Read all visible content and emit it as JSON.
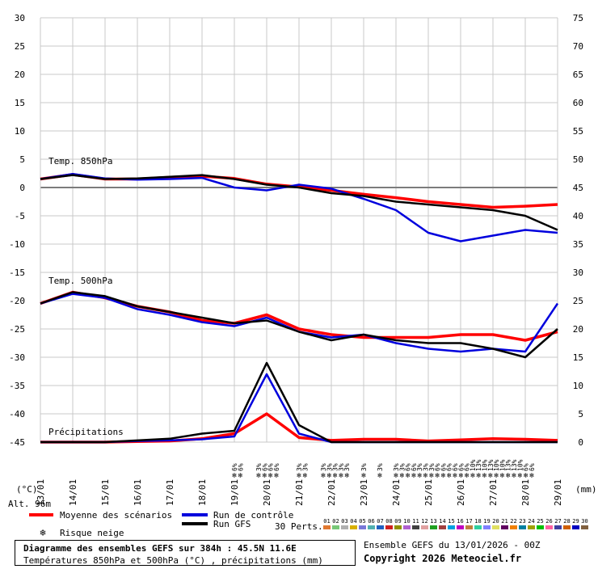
{
  "chart_data": {
    "type": "line",
    "title": "Diagramme des ensembles GEFS sur 384h : 45.5N 11.6E",
    "subtitle": "Températures 850hPa et 500hPa (°C) , précipitations (mm)",
    "left_axis_unit": "(°C)",
    "right_axis_unit": "(mm)",
    "left_ticks": [
      30,
      25,
      20,
      15,
      10,
      5,
      0,
      -5,
      -10,
      -15,
      -20,
      -25,
      -30,
      -35,
      -40,
      -45
    ],
    "right_ticks": [
      75,
      70,
      65,
      60,
      55,
      50,
      45,
      40,
      35,
      30,
      25,
      20,
      15,
      10,
      5,
      0
    ],
    "ylim": [
      -45,
      30
    ],
    "x_dates": [
      "13/01",
      "14/01",
      "15/01",
      "16/01",
      "17/01",
      "18/01",
      "19/01",
      "20/01",
      "21/01",
      "22/01",
      "23/01",
      "24/01",
      "25/01",
      "26/01",
      "27/01",
      "28/01",
      "29/01"
    ],
    "section_labels": {
      "t850": "Temp. 850hPa",
      "t500": "Temp. 500hPa",
      "precip": "Précipitations"
    },
    "altitude": "Alt. 96m",
    "x_hours": [
      0,
      24,
      48,
      72,
      96,
      120,
      144,
      168,
      192,
      216,
      240,
      264,
      288,
      312,
      336,
      360,
      384
    ],
    "series": [
      {
        "name": "Moyenne des scénarios",
        "group": "t850",
        "color": "#ff0000",
        "values": [
          1.5,
          2.3,
          1.5,
          1.5,
          1.8,
          2.0,
          1.6,
          0.6,
          0.1,
          -0.5,
          -1.2,
          -1.8,
          -2.5,
          -3.0,
          -3.5,
          -3.3,
          -3.0
        ]
      },
      {
        "name": "Run de contrôle",
        "group": "t850",
        "color": "#0000dd",
        "values": [
          1.5,
          2.4,
          1.6,
          1.4,
          1.5,
          1.7,
          0.0,
          -0.5,
          0.5,
          -0.2,
          -2.0,
          -4.0,
          -8.0,
          -9.5,
          -8.5,
          -7.5,
          -8.0
        ]
      },
      {
        "name": "Run GFS",
        "group": "t850",
        "color": "#000000",
        "values": [
          1.5,
          2.2,
          1.5,
          1.6,
          1.9,
          2.2,
          1.5,
          0.5,
          0.0,
          -1.0,
          -1.5,
          -2.5,
          -3.0,
          -3.5,
          -4.0,
          -5.0,
          -7.5
        ]
      },
      {
        "name": "Moyenne des scénarios",
        "group": "t500",
        "color": "#ff0000",
        "values": [
          -20.5,
          -18.5,
          -19.5,
          -21.0,
          -22.0,
          -23.5,
          -24.0,
          -22.5,
          -25.0,
          -26.0,
          -26.5,
          -26.5,
          -26.5,
          -26.0,
          -26.0,
          -27.0,
          -25.5
        ]
      },
      {
        "name": "Run de contrôle",
        "group": "t500",
        "color": "#0000dd",
        "values": [
          -20.5,
          -18.8,
          -19.5,
          -21.5,
          -22.5,
          -23.8,
          -24.5,
          -23.0,
          -25.5,
          -26.5,
          -26.0,
          -27.5,
          -28.5,
          -29.0,
          -28.5,
          -29.0,
          -20.5
        ]
      },
      {
        "name": "Run GFS",
        "group": "t500",
        "color": "#000000",
        "values": [
          -20.5,
          -18.5,
          -19.2,
          -21.0,
          -22.0,
          -23.0,
          -24.0,
          -23.5,
          -25.5,
          -27.0,
          -26.0,
          -27.0,
          -27.5,
          -27.5,
          -28.5,
          -30.0,
          -25.0
        ]
      },
      {
        "name": "Moyenne des scénarios",
        "group": "precip",
        "color": "#ff0000",
        "values": [
          0.0,
          0.0,
          0.0,
          0.1,
          0.2,
          0.6,
          1.5,
          5.0,
          0.8,
          0.3,
          0.5,
          0.5,
          0.2,
          0.4,
          0.6,
          0.5,
          0.3
        ]
      },
      {
        "name": "Run de contrôle",
        "group": "precip",
        "color": "#0000dd",
        "values": [
          0.0,
          0.0,
          0.0,
          0.2,
          0.3,
          0.5,
          1.0,
          12.0,
          1.5,
          0.0,
          0.0,
          0.0,
          0.0,
          0.0,
          0.0,
          0.0,
          0.0
        ]
      },
      {
        "name": "Run GFS",
        "group": "precip",
        "color": "#000000",
        "values": [
          0.0,
          0.0,
          0.0,
          0.3,
          0.6,
          1.5,
          2.0,
          14.0,
          3.0,
          0.0,
          0.0,
          0.0,
          0.0,
          0.0,
          0.0,
          0.0,
          0.0
        ]
      }
    ],
    "snow_risk": [
      {
        "hour": 144,
        "pcts": [
          "6%",
          "6%"
        ]
      },
      {
        "hour": 162,
        "pcts": [
          "3%",
          "6%",
          "6%",
          "6%"
        ]
      },
      {
        "hour": 192,
        "pcts": [
          "3%",
          "3%"
        ]
      },
      {
        "hour": 210,
        "pcts": [
          "3%",
          "3%",
          "3%",
          "3%",
          "3%"
        ]
      },
      {
        "hour": 240,
        "pcts": [
          "3%"
        ]
      },
      {
        "hour": 252,
        "pcts": [
          "3%"
        ]
      },
      {
        "hour": 264,
        "pcts": [
          "3%",
          "3%",
          "6%",
          "6%",
          "3%",
          "3%",
          "3%",
          "6%",
          "6%",
          "6%",
          "6%",
          "6%",
          "6%",
          "10%",
          "13%",
          "10%",
          "13%",
          "10%",
          "10%",
          "13%",
          "13%",
          "10%",
          "6%",
          "6%"
        ]
      }
    ],
    "legend": {
      "mean": "Moyenne des scénarios",
      "control": "Run de contrôle",
      "gfs": "Run GFS",
      "snow": "Risque neige",
      "perts_label": "30 Perts.",
      "perts": [
        "01",
        "02",
        "03",
        "04",
        "05",
        "06",
        "07",
        "08",
        "09",
        "10",
        "11",
        "12",
        "13",
        "14",
        "15",
        "16",
        "17",
        "18",
        "19",
        "20",
        "21",
        "22",
        "23",
        "24",
        "25",
        "26",
        "27",
        "28",
        "29",
        "30"
      ],
      "pert_colors": [
        "#e07830",
        "#78c878",
        "#b0b0b0",
        "#d8b000",
        "#7878d8",
        "#50b0b0",
        "#2060c0",
        "#d02020",
        "#909000",
        "#b060d0",
        "#404040",
        "#e0a0a0",
        "#20a020",
        "#a04040",
        "#00a0e0",
        "#c000c0",
        "#c08040",
        "#30d0a0",
        "#8080ff",
        "#e0e060",
        "#600060",
        "#f08000",
        "#0080a0",
        "#a0a000",
        "#00c000",
        "#ff60a0",
        "#4040a0",
        "#d06000",
        "#0000c0",
        "#806040"
      ]
    },
    "footer_right_1": "Ensemble GEFS du 13/01/2026 - 00Z",
    "footer_right_2": "Copyright 2026 Meteociel.fr"
  }
}
